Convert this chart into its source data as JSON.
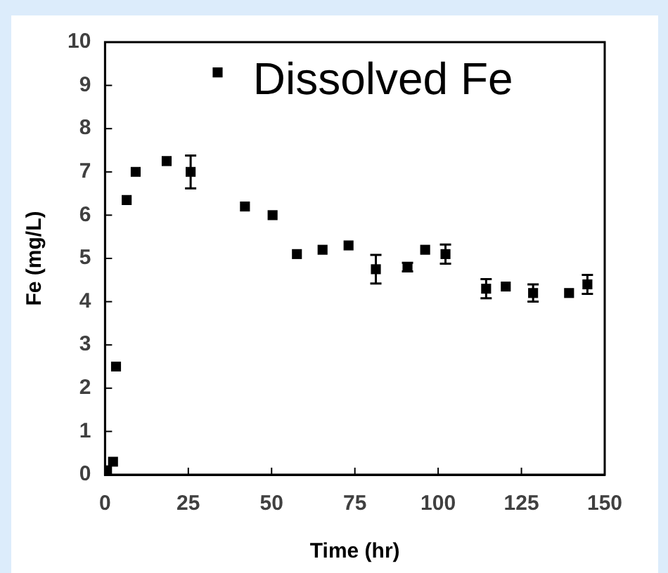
{
  "chart_data": {
    "type": "scatter",
    "title": "Dissolved Fe",
    "xlabel": "Time (hr)",
    "ylabel": "Fe (mg/L)",
    "x": [
      0.6,
      2.4,
      3.3,
      6.5,
      9.2,
      18.5,
      25.7,
      33.8,
      42,
      50.3,
      57.6,
      65.3,
      73.1,
      81.3,
      90.8,
      96.1,
      102.2,
      114.4,
      120.3,
      128.5,
      139.3,
      144.8
    ],
    "series": [
      {
        "color": "#000000",
        "values": [
          0.1,
          0.3,
          2.5,
          6.35,
          7.0,
          7.25,
          7.0,
          9.3,
          6.2,
          6.0,
          5.1,
          5.2,
          5.3,
          4.75,
          4.8,
          5.2,
          5.1,
          4.3,
          4.35,
          4.2,
          4.2,
          4.4
        ],
        "errors": [
          null,
          null,
          null,
          null,
          null,
          null,
          0.38,
          null,
          null,
          null,
          null,
          null,
          null,
          0.33,
          0.1,
          null,
          0.22,
          0.22,
          null,
          0.2,
          null,
          0.22
        ]
      }
    ],
    "xlim": [
      0,
      150
    ],
    "xticks": [
      0,
      25,
      50,
      75,
      100,
      125,
      150
    ],
    "ylim": [
      0,
      10
    ],
    "yticks": [
      0,
      1,
      2,
      3,
      4,
      5,
      6,
      7,
      8,
      9,
      10
    ],
    "marker": "square",
    "grid": false,
    "legend": false
  }
}
